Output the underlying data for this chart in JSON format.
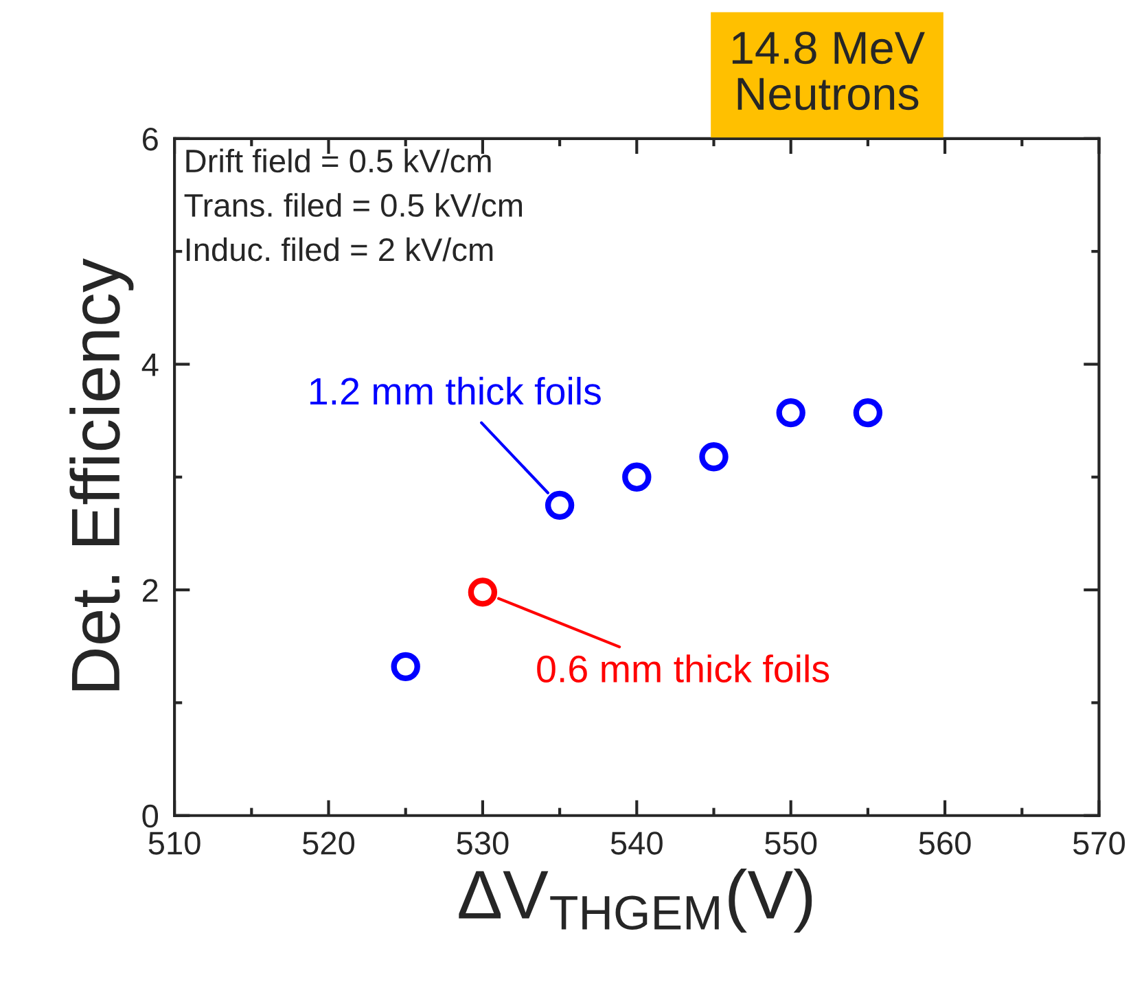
{
  "chart_data": {
    "type": "scatter",
    "title": "14.8 MeV\nNeutrons",
    "xlabel": "ΔV$_{THGEM}$(V)",
    "ylabel": "Det. Efficiency",
    "annotations": [
      "Drift field = 0.5 kV/cm\nTrans. filed = 0.5 kV/cm\nInduc. filed = 2 kV/cm",
      {
        "text": "1.2 mm thick foils",
        "x": 535,
        "y": 2.75
      },
      {
        "text": "0.6 mm thick foils",
        "x": 530,
        "y": 1.98
      }
    ],
    "series": [
      {
        "color": "#0000ff",
        "x": [
          525,
          535,
          540,
          545,
          550,
          555
        ],
        "values": [
          1.32,
          2.75,
          3.0,
          3.18,
          3.57,
          3.57
        ]
      },
      {
        "color": "#ff0000",
        "x": [
          530
        ],
        "values": [
          1.98
        ]
      }
    ],
    "xlim": [
      510,
      570
    ],
    "xticks": [
      510,
      520,
      530,
      540,
      550,
      560,
      570
    ],
    "ylim": [
      0,
      6
    ],
    "yticks": [
      0,
      2,
      4,
      6
    ],
    "marker": "circle",
    "grid": false,
    "legend": false
  }
}
